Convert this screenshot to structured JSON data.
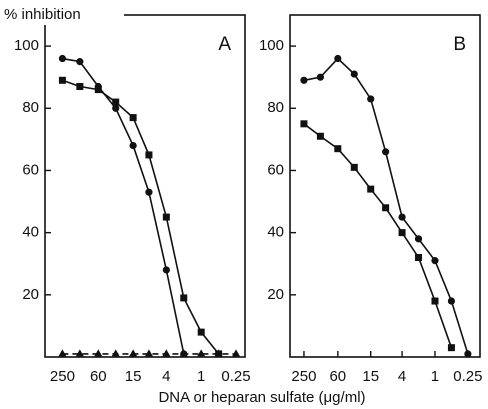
{
  "chart_data": [
    {
      "type": "line",
      "panel_label": "A",
      "ylabel": "% inhibition",
      "xlabel": "DNA or heparan sulfate (μg/ml)",
      "x": [
        250,
        125,
        60,
        30,
        15,
        8,
        4,
        2,
        1,
        0.5,
        0.25
      ],
      "xscale": "log",
      "xlim": [
        500,
        0.175
      ],
      "xticks": [
        250,
        60,
        15,
        4,
        1,
        0.25
      ],
      "ylim": [
        0,
        110
      ],
      "yticks": [
        20,
        40,
        60,
        80,
        100
      ],
      "series": [
        {
          "color": "#111111",
          "marker": "circle",
          "dashed": false,
          "values": [
            96,
            95,
            87,
            80,
            68,
            53,
            28,
            1,
            null,
            null,
            null
          ]
        },
        {
          "color": "#111111",
          "marker": "square",
          "dashed": false,
          "values": [
            89,
            87,
            86,
            82,
            77,
            65,
            45,
            19,
            8,
            1,
            null
          ]
        },
        {
          "color": "#111111",
          "marker": "triangle",
          "dashed": true,
          "values": [
            1,
            1,
            1,
            1,
            1,
            1,
            1,
            1,
            1,
            1,
            1
          ]
        }
      ]
    },
    {
      "type": "line",
      "panel_label": "B",
      "x": [
        250,
        125,
        60,
        30,
        15,
        8,
        4,
        2,
        1,
        0.5,
        0.25
      ],
      "xscale": "log",
      "xlim": [
        450,
        0.15
      ],
      "xticks": [
        250,
        60,
        15,
        4,
        1,
        0.25
      ],
      "ylim": [
        0,
        110
      ],
      "yticks": [
        20,
        40,
        60,
        80,
        100
      ],
      "series": [
        {
          "color": "#111111",
          "marker": "circle",
          "dashed": false,
          "values": [
            89,
            90,
            96,
            91,
            83,
            66,
            45,
            38,
            31,
            18,
            1
          ]
        },
        {
          "color": "#111111",
          "marker": "square",
          "dashed": false,
          "values": [
            75,
            71,
            67,
            61,
            54,
            48,
            40,
            32,
            18,
            3,
            null
          ]
        }
      ]
    }
  ]
}
